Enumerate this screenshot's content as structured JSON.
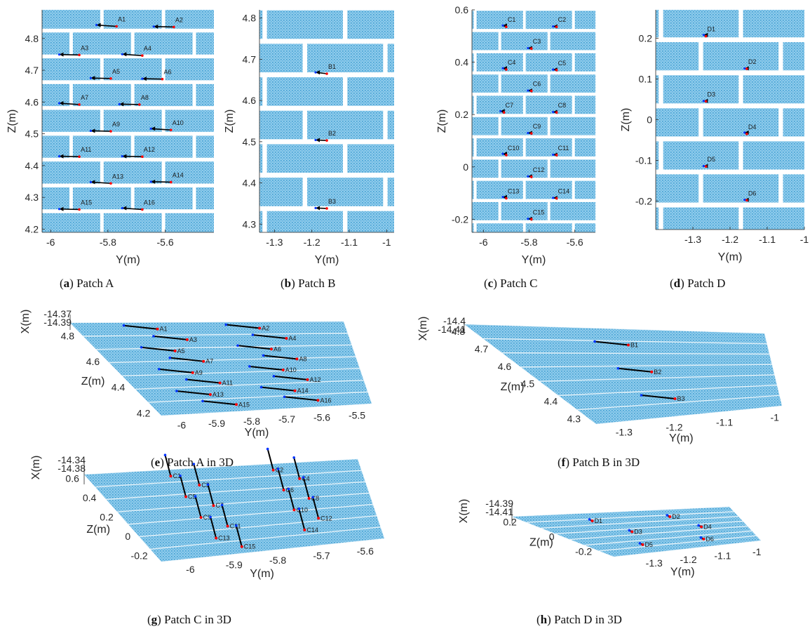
{
  "brick_color": "#5aaedc",
  "mortar_color": "#ffffff",
  "arrow_color": "#000000",
  "start_color": "#0033ff",
  "end_color": "#ff0000",
  "axis_color": "#262626",
  "chart_data": [
    {
      "type": "scatter",
      "panel": "a",
      "caption_letter": "a",
      "caption_text": " Patch A",
      "xlabel": "Y(m)",
      "ylabel": "Z(m)",
      "xlim": [
        -6.03,
        -5.43
      ],
      "ylim": [
        4.19,
        4.89
      ],
      "xticks": [
        "-6",
        "-5.8",
        "-5.6"
      ],
      "xtick_values": [
        -6,
        -5.8,
        -5.6
      ],
      "yticks": [
        "4.2",
        "4.3",
        "4.4",
        "4.5",
        "4.6",
        "4.7",
        "4.8"
      ],
      "ytick_values": [
        4.2,
        4.3,
        4.4,
        4.5,
        4.6,
        4.7,
        4.8
      ],
      "course_height": 0.0812,
      "brick_length": 0.215,
      "points": [
        {
          "label": "A1",
          "y": -5.77,
          "z": 4.838,
          "dy": -0.07
        },
        {
          "label": "A2",
          "y": -5.57,
          "z": 4.836,
          "dy": -0.07
        },
        {
          "label": "A3",
          "y": -5.9,
          "z": 4.748,
          "dy": -0.07
        },
        {
          "label": "A4",
          "y": -5.68,
          "z": 4.746,
          "dy": -0.07
        },
        {
          "label": "A5",
          "y": -5.79,
          "z": 4.674,
          "dy": -0.07
        },
        {
          "label": "A6",
          "y": -5.61,
          "z": 4.672,
          "dy": -0.07
        },
        {
          "label": "A7",
          "y": -5.9,
          "z": 4.592,
          "dy": -0.07
        },
        {
          "label": "A8",
          "y": -5.69,
          "z": 4.592,
          "dy": -0.07
        },
        {
          "label": "A9",
          "y": -5.79,
          "z": 4.508,
          "dy": -0.07
        },
        {
          "label": "A10",
          "y": -5.58,
          "z": 4.512,
          "dy": -0.07
        },
        {
          "label": "A11",
          "y": -5.9,
          "z": 4.428,
          "dy": -0.07
        },
        {
          "label": "A12",
          "y": -5.68,
          "z": 4.428,
          "dy": -0.07
        },
        {
          "label": "A13",
          "y": -5.79,
          "z": 4.344,
          "dy": -0.07
        },
        {
          "label": "A14",
          "y": -5.58,
          "z": 4.348,
          "dy": -0.07
        },
        {
          "label": "A15",
          "y": -5.9,
          "z": 4.262,
          "dy": -0.07
        },
        {
          "label": "A16",
          "y": -5.68,
          "z": 4.262,
          "dy": -0.07
        }
      ]
    },
    {
      "type": "scatter",
      "panel": "b",
      "caption_letter": "b",
      "caption_text": " Patch B",
      "xlabel": "Y(m)",
      "ylabel": "Z(m)",
      "xlim": [
        -1.34,
        -0.98
      ],
      "ylim": [
        4.28,
        4.82
      ],
      "xticks": [
        "-1.3",
        "-1.2",
        "-1.1",
        "-1"
      ],
      "xtick_values": [
        -1.3,
        -1.2,
        -1.1,
        -1
      ],
      "yticks": [
        "4.3",
        "4.4",
        "4.5",
        "4.6",
        "4.7",
        "4.8"
      ],
      "ytick_values": [
        4.3,
        4.4,
        4.5,
        4.6,
        4.7,
        4.8
      ],
      "course_height": 0.0812,
      "brick_length": 0.215,
      "points": [
        {
          "label": "B1",
          "y": -1.16,
          "z": 4.665,
          "dy": -0.03
        },
        {
          "label": "B2",
          "y": -1.16,
          "z": 4.503,
          "dy": -0.03
        },
        {
          "label": "B3",
          "y": -1.16,
          "z": 4.338,
          "dy": -0.03
        }
      ]
    },
    {
      "type": "scatter",
      "panel": "c",
      "caption_letter": "c",
      "caption_text": " Patch C",
      "xlabel": "Y(m)",
      "ylabel": "Z(m)",
      "xlim": [
        -6.05,
        -5.51
      ],
      "ylim": [
        -0.25,
        0.6
      ],
      "xticks": [
        "-6",
        "-5.8",
        "-5.6"
      ],
      "xtick_values": [
        -6,
        -5.8,
        -5.6
      ],
      "yticks": [
        "-0.2",
        "0",
        "0.2",
        "0.4",
        "0.6"
      ],
      "ytick_values": [
        -0.2,
        0,
        0.2,
        0.4,
        0.6
      ],
      "course_height": 0.0812,
      "brick_length": 0.215,
      "points": [
        {
          "label": "C1",
          "y": -5.9,
          "z": 0.535,
          "dy": -0.015
        },
        {
          "label": "C2",
          "y": -5.68,
          "z": 0.535,
          "dy": -0.015
        },
        {
          "label": "C3",
          "y": -5.79,
          "z": 0.452,
          "dy": -0.015
        },
        {
          "label": "C4",
          "y": -5.9,
          "z": 0.372,
          "dy": -0.015
        },
        {
          "label": "C5",
          "y": -5.68,
          "z": 0.37,
          "dy": -0.015
        },
        {
          "label": "C6",
          "y": -5.79,
          "z": 0.29,
          "dy": -0.015
        },
        {
          "label": "C7",
          "y": -5.91,
          "z": 0.208,
          "dy": -0.015
        },
        {
          "label": "C8",
          "y": -5.68,
          "z": 0.208,
          "dy": -0.015
        },
        {
          "label": "C9",
          "y": -5.79,
          "z": 0.128,
          "dy": -0.015
        },
        {
          "label": "C10",
          "y": -5.9,
          "z": 0.045,
          "dy": -0.015
        },
        {
          "label": "C11",
          "y": -5.68,
          "z": 0.045,
          "dy": -0.015
        },
        {
          "label": "C12",
          "y": -5.79,
          "z": -0.038,
          "dy": -0.015
        },
        {
          "label": "C13",
          "y": -5.9,
          "z": -0.12,
          "dy": -0.015
        },
        {
          "label": "C14",
          "y": -5.68,
          "z": -0.12,
          "dy": -0.015
        },
        {
          "label": "C15",
          "y": -5.79,
          "z": -0.2,
          "dy": -0.015
        }
      ]
    },
    {
      "type": "scatter",
      "panel": "d",
      "caption_letter": "d",
      "caption_text": " Patch D",
      "xlabel": "Y(m)",
      "ylabel": "Z(m)",
      "xlim": [
        -1.4,
        -1.0
      ],
      "ylim": [
        -0.27,
        0.27
      ],
      "xticks": [
        "-1.3",
        "-1.2",
        "-1.1",
        "-1"
      ],
      "xtick_values": [
        -1.3,
        -1.2,
        -1.1,
        -1
      ],
      "yticks": [
        "-0.2",
        "-0.1",
        "0",
        "0.1",
        "0.2"
      ],
      "ytick_values": [
        -0.2,
        -0.1,
        0,
        0.1,
        0.2
      ],
      "course_height": 0.0812,
      "brick_length": 0.215,
      "points": [
        {
          "label": "D1",
          "y": -1.265,
          "z": 0.205,
          "dy": -0.006
        },
        {
          "label": "D2",
          "y": -1.155,
          "z": 0.125,
          "dy": -0.006
        },
        {
          "label": "D3",
          "y": -1.265,
          "z": 0.045,
          "dy": -0.006
        },
        {
          "label": "D4",
          "y": -1.155,
          "z": -0.035,
          "dy": -0.006
        },
        {
          "label": "D5",
          "y": -1.265,
          "z": -0.115,
          "dy": -0.006
        },
        {
          "label": "D6",
          "y": -1.155,
          "z": -0.198,
          "dy": -0.006
        }
      ]
    },
    {
      "type": "scatter3d",
      "panel": "e",
      "caption_letter": "e",
      "caption_text": " Patch A in 3D",
      "xlabel": "Y(m)",
      "ylabel": "Z(m)",
      "zlabel": "X(m)",
      "xticks": [
        "-6",
        "-5.9",
        "-5.8",
        "-5.7",
        "-5.6",
        "-5.5"
      ],
      "xtick_values": [
        -6,
        -5.9,
        -5.8,
        -5.7,
        -5.6,
        -5.5
      ],
      "yticks": [
        "4.2",
        "4.4",
        "4.6",
        "4.8"
      ],
      "ytick_values": [
        4.2,
        4.4,
        4.6,
        4.8
      ],
      "zticks": [
        "-14.37",
        "-14.39"
      ],
      "xlim": [
        -6.05,
        -5.45
      ],
      "ylim": [
        4.18,
        4.9
      ],
      "labels": [
        "A1",
        "A2",
        "A3",
        "A4",
        "A5",
        "A6",
        "A7",
        "A8",
        "A9",
        "A10",
        "A11",
        "A12",
        "A13",
        "A14",
        "A15",
        "A16"
      ]
    },
    {
      "type": "scatter3d",
      "panel": "f",
      "caption_letter": "f",
      "caption_text": " Patch B in 3D",
      "xlabel": "Y(m)",
      "ylabel": "Z(m)",
      "zlabel": "X(m)",
      "xticks": [
        "-1.3",
        "-1.2",
        "-1.1",
        "-1"
      ],
      "xtick_values": [
        -1.3,
        -1.2,
        -1.1,
        -1
      ],
      "yticks": [
        "4.3",
        "4.4",
        "4.5",
        "4.6",
        "4.7",
        "4.8"
      ],
      "ytick_values": [
        4.3,
        4.4,
        4.5,
        4.6,
        4.7,
        4.8
      ],
      "zticks": [
        "-14.4",
        "-14.41"
      ],
      "xlim": [
        -1.35,
        -0.98
      ],
      "ylim": [
        4.27,
        4.84
      ],
      "labels": [
        "B1",
        "B2",
        "B3"
      ]
    },
    {
      "type": "scatter3d",
      "panel": "g",
      "caption_letter": "g",
      "caption_text": " Patch C in 3D",
      "xlabel": "Y(m)",
      "ylabel": "Z(m)",
      "zlabel": "X(m)",
      "xticks": [
        "-6",
        "-5.9",
        "-5.8",
        "-5.7",
        "-5.6"
      ],
      "xtick_values": [
        -6,
        -5.9,
        -5.8,
        -5.7,
        -5.6
      ],
      "yticks": [
        "-0.2",
        "0",
        "0.2",
        "0.4",
        "0.6"
      ],
      "ytick_values": [
        -0.2,
        0,
        0.2,
        0.4,
        0.6
      ],
      "zticks": [
        "-14.34",
        "-14.38"
      ],
      "xlim": [
        -6.06,
        -5.55
      ],
      "ylim": [
        -0.26,
        0.64
      ],
      "labels": [
        "C1",
        "C2",
        "C3",
        "C4",
        "C5",
        "C6",
        "C7",
        "C8",
        "C9",
        "C10",
        "C11",
        "C12",
        "C13",
        "C14",
        "C15"
      ]
    },
    {
      "type": "scatter3d",
      "panel": "h",
      "caption_letter": "h",
      "caption_text": " Patch D in 3D",
      "xlabel": "Y(m)",
      "ylabel": "Z(m)",
      "zlabel": "X(m)",
      "xticks": [
        "-1.3",
        "-1.2",
        "-1.1",
        "-1"
      ],
      "xtick_values": [
        -1.3,
        -1.2,
        -1.1,
        -1
      ],
      "yticks": [
        "-0.2",
        "0",
        "0.2"
      ],
      "ytick_values": [
        -0.2,
        0,
        0.2
      ],
      "zticks": [
        "-14.39",
        "-14.41"
      ],
      "xlim": [
        -1.41,
        -0.98
      ],
      "ylim": [
        -0.27,
        0.27
      ],
      "labels": [
        "D1",
        "D2",
        "D3",
        "D4",
        "D5",
        "D6"
      ]
    }
  ]
}
